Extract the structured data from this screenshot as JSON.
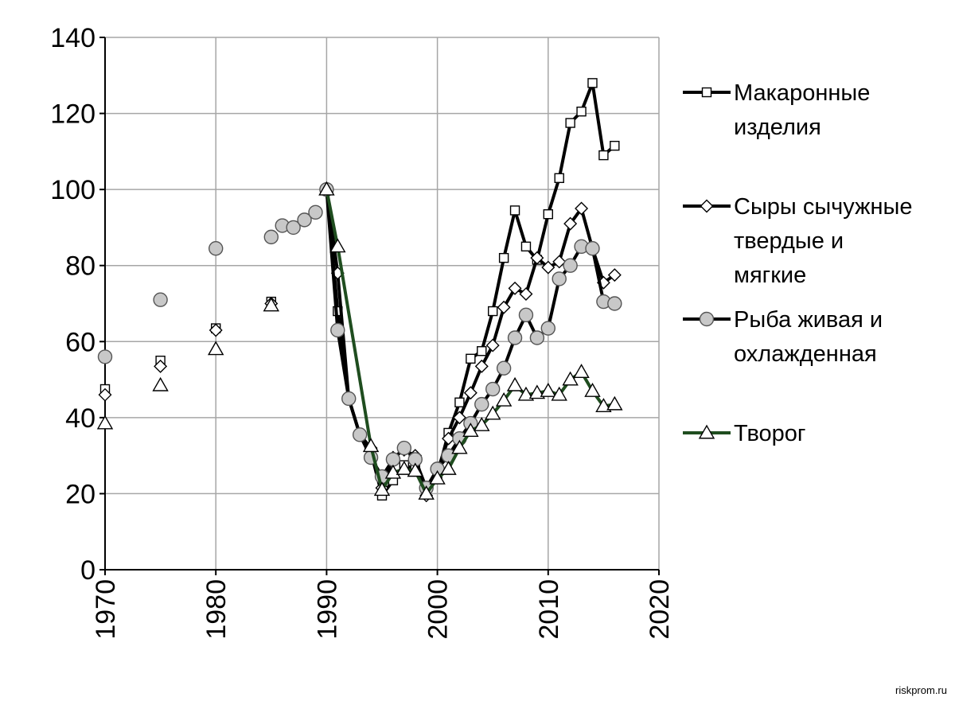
{
  "chart_data": {
    "type": "line",
    "title": "",
    "xlabel": "",
    "ylabel": "",
    "xlim": [
      1970,
      2020
    ],
    "ylim": [
      0,
      140
    ],
    "x_ticks": [
      1970,
      1980,
      1990,
      2000,
      2010,
      2020
    ],
    "y_ticks": [
      0,
      20,
      40,
      60,
      80,
      100,
      120,
      140
    ],
    "grid": true,
    "legend_position": "right",
    "series": [
      {
        "name": "Макаронные изделия",
        "legend_lines": [
          "Макаронные",
          "изделия"
        ],
        "marker": "square",
        "line_color": "#000000",
        "marker_fill": "#ffffff",
        "points": [
          [
            1970,
            47.5
          ],
          [
            1975,
            55
          ],
          [
            1980,
            63.5
          ],
          [
            1985,
            70.5
          ],
          [
            1990,
            100
          ],
          [
            1991,
            68
          ],
          [
            1992,
            45
          ],
          [
            1993,
            35.5
          ],
          [
            1994,
            31
          ],
          [
            1995,
            19.5
          ],
          [
            1996,
            23.5
          ],
          [
            1997,
            27.5
          ],
          [
            1998,
            26.5
          ],
          [
            1999,
            21
          ],
          [
            2000,
            25
          ],
          [
            2001,
            36
          ],
          [
            2002,
            44
          ],
          [
            2003,
            55.5
          ],
          [
            2004,
            57.5
          ],
          [
            2005,
            68
          ],
          [
            2006,
            82
          ],
          [
            2007,
            94.5
          ],
          [
            2008,
            85
          ],
          [
            2009,
            81.5
          ],
          [
            2010,
            93.5
          ],
          [
            2011,
            103
          ],
          [
            2012,
            117.5
          ],
          [
            2013,
            120.5
          ],
          [
            2014,
            128
          ],
          [
            2015,
            109
          ],
          [
            2016,
            111.5
          ]
        ],
        "disconnected_until": 1990
      },
      {
        "name": "Сыры сычужные твердые и мягкие",
        "legend_lines": [
          "Сыры сычужные",
          "твердые и",
          "мягкие"
        ],
        "marker": "diamond",
        "line_color": "#000000",
        "marker_fill": "#ffffff",
        "points": [
          [
            1970,
            46
          ],
          [
            1975,
            53.5
          ],
          [
            1980,
            63
          ],
          [
            1985,
            70
          ],
          [
            1990,
            100
          ],
          [
            1991,
            78
          ],
          [
            1992,
            45
          ],
          [
            1993,
            35.5
          ],
          [
            1994,
            32
          ],
          [
            1995,
            21.5
          ],
          [
            1996,
            29.5
          ],
          [
            1997,
            31.5
          ],
          [
            1998,
            30
          ],
          [
            1999,
            19.5
          ],
          [
            2000,
            26
          ],
          [
            2001,
            34.5
          ],
          [
            2002,
            40
          ],
          [
            2003,
            46.5
          ],
          [
            2004,
            53.5
          ],
          [
            2005,
            59
          ],
          [
            2006,
            69
          ],
          [
            2007,
            74
          ],
          [
            2008,
            72.5
          ],
          [
            2009,
            82
          ],
          [
            2010,
            79.5
          ],
          [
            2011,
            81
          ],
          [
            2012,
            91
          ],
          [
            2013,
            95
          ],
          [
            2014,
            84.5
          ],
          [
            2015,
            75.5
          ],
          [
            2016,
            77.5
          ]
        ],
        "disconnected_until": 1990
      },
      {
        "name": "Рыба живая и охлажденная",
        "legend_lines": [
          "Рыба живая и",
          "охлажденная"
        ],
        "marker": "circle",
        "line_color": "#000000",
        "marker_fill": "#c8c8c8",
        "points": [
          [
            1970,
            56
          ],
          [
            1975,
            71
          ],
          [
            1980,
            84.5
          ],
          [
            1985,
            87.5
          ],
          [
            1986,
            90.5
          ],
          [
            1987,
            90
          ],
          [
            1988,
            92
          ],
          [
            1989,
            94
          ],
          [
            1990,
            100
          ],
          [
            1991,
            63
          ],
          [
            1992,
            45
          ],
          [
            1993,
            35.5
          ],
          [
            1994,
            29.5
          ],
          [
            1995,
            24.5
          ],
          [
            1996,
            29
          ],
          [
            1997,
            32
          ],
          [
            1998,
            29
          ],
          [
            1999,
            21.5
          ],
          [
            2000,
            26.5
          ],
          [
            2001,
            30
          ],
          [
            2002,
            34.5
          ],
          [
            2003,
            38.5
          ],
          [
            2004,
            43.5
          ],
          [
            2005,
            47.5
          ],
          [
            2006,
            53
          ],
          [
            2007,
            61
          ],
          [
            2008,
            67
          ],
          [
            2009,
            61
          ],
          [
            2010,
            63.5
          ],
          [
            2011,
            76.5
          ],
          [
            2012,
            80
          ],
          [
            2013,
            85
          ],
          [
            2014,
            84.5
          ],
          [
            2015,
            70.5
          ],
          [
            2016,
            70
          ]
        ],
        "disconnected_until": 1990
      },
      {
        "name": "Творог",
        "legend_lines": [
          "Творог"
        ],
        "marker": "triangle",
        "line_color": "#1f4d1f",
        "marker_fill": "#ffffff",
        "points": [
          [
            1970,
            38.5
          ],
          [
            1975,
            48.5
          ],
          [
            1980,
            58
          ],
          [
            1985,
            69.5
          ],
          [
            1990,
            100
          ],
          [
            1991,
            85
          ],
          [
            1994,
            32.5
          ],
          [
            1995,
            21
          ],
          [
            1996,
            25.5
          ],
          [
            1997,
            26.5
          ],
          [
            1998,
            26
          ],
          [
            1999,
            20
          ],
          [
            2000,
            24
          ],
          [
            2001,
            26.5
          ],
          [
            2002,
            32
          ],
          [
            2003,
            36.5
          ],
          [
            2004,
            38
          ],
          [
            2005,
            41
          ],
          [
            2006,
            44.5
          ],
          [
            2007,
            48.5
          ],
          [
            2008,
            46
          ],
          [
            2009,
            46.5
          ],
          [
            2010,
            47
          ],
          [
            2011,
            46
          ],
          [
            2012,
            50
          ],
          [
            2013,
            52
          ],
          [
            2014,
            47
          ],
          [
            2015,
            43
          ],
          [
            2016,
            43.5
          ]
        ],
        "disconnected_until": 1990
      }
    ]
  },
  "watermark": "riskprom.ru"
}
